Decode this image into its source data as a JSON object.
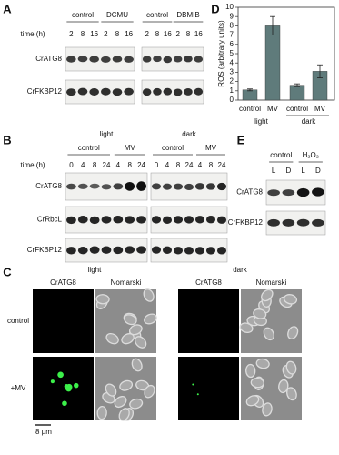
{
  "panels": {
    "A": {
      "label": "A",
      "groups": [
        "control",
        "DCMU",
        "control",
        "DBMIB"
      ],
      "time_label": "time (h)",
      "times": [
        "2",
        "8",
        "16",
        "2",
        "8",
        "16",
        "2",
        "8",
        "16",
        "2",
        "8",
        "16"
      ],
      "rows": [
        "CrATG8",
        "CrFKBP12"
      ]
    },
    "B": {
      "label": "B",
      "conditions": [
        "light",
        "dark"
      ],
      "groups": [
        "control",
        "MV",
        "control",
        "MV"
      ],
      "time_label": "time (h)",
      "times": [
        "0",
        "4",
        "8",
        "24",
        "4",
        "8",
        "24",
        "0",
        "4",
        "8",
        "24",
        "4",
        "8",
        "24"
      ],
      "rows": [
        "CrATG8",
        "CrRbcL",
        "CrFKBP12"
      ]
    },
    "C": {
      "label": "C",
      "conditions": [
        "light",
        "dark"
      ],
      "columns": [
        "CrATG8",
        "Nomarski",
        "CrATG8",
        "Nomarski"
      ],
      "rows": [
        "control",
        "+MV"
      ],
      "scale_bar": "8 µm"
    },
    "D": {
      "label": "D"
    },
    "E": {
      "label": "E",
      "groups": [
        "control",
        "H₂O₂"
      ],
      "lanes": [
        "L",
        "D",
        "L",
        "D"
      ],
      "rows": [
        "CrATG8",
        "CrFKBP12"
      ]
    }
  },
  "chart_data": {
    "type": "bar",
    "ylabel": "ROS (arbitrary units)",
    "categories": [
      "control",
      "MV",
      "control",
      "MV"
    ],
    "groups": [
      "light",
      "dark"
    ],
    "values": [
      1.1,
      8.0,
      1.6,
      3.1
    ],
    "errors": [
      0.1,
      1.0,
      0.15,
      0.7
    ],
    "color": "#5f7b7b",
    "ylim": [
      0,
      10
    ],
    "yticks": [
      0,
      1,
      2,
      3,
      4,
      5,
      6,
      7,
      8,
      9,
      10
    ]
  }
}
